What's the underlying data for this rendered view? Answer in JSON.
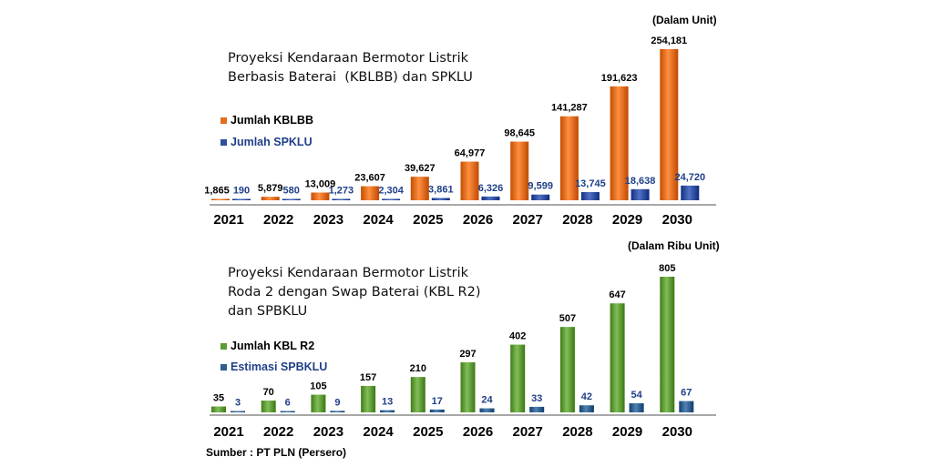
{
  "source": "Sumber : PT PLN (Persero)",
  "chart_data": [
    {
      "type": "bar",
      "title_lines": [
        "Proyeksi Kendaraan Bermotor Listrik",
        "Berbasis Baterai  (KBLBB) dan SPKLU"
      ],
      "unit_note": "(Dalam Unit)",
      "categories": [
        "2021",
        "2022",
        "2023",
        "2024",
        "2025",
        "2026",
        "2027",
        "2028",
        "2029",
        "2030"
      ],
      "series": [
        {
          "name": "Jumlah KBLBB",
          "color": "#e36c1e",
          "label_color": "#000000",
          "values": [
            1865,
            5879,
            13009,
            23607,
            39627,
            64977,
            98645,
            141287,
            191623,
            254181
          ],
          "labels": [
            "1,865",
            "5,879",
            "13,009",
            "23,607",
            "39,627",
            "64,977",
            "98,645",
            "141,287",
            "191,623",
            "254,181"
          ]
        },
        {
          "name": "Jumlah SPKLU",
          "color": "#2f4ea0",
          "label_color": "#1f3f88",
          "values": [
            190,
            580,
            1273,
            2304,
            3861,
            6326,
            9599,
            13745,
            18638,
            24720
          ],
          "labels": [
            "190",
            "580",
            "1,273",
            "2,304",
            "3,861",
            "6,326",
            "9,599",
            "13,745",
            "18,638",
            "24,720"
          ]
        }
      ],
      "ylim": [
        0,
        254181
      ],
      "legend": "left"
    },
    {
      "type": "bar",
      "title_lines": [
        "Proyeksi Kendaraan Bermotor Listrik",
        "Roda 2 dengan Swap Baterai (KBL R2)",
        "dan SPBKLU"
      ],
      "unit_note": "(Dalam Ribu Unit)",
      "categories": [
        "2021",
        "2022",
        "2023",
        "2024",
        "2025",
        "2026",
        "2027",
        "2028",
        "2029",
        "2030"
      ],
      "series": [
        {
          "name": "Jumlah KBL R2",
          "color": "#5e9a35",
          "label_color": "#000000",
          "values": [
            35,
            70,
            105,
            157,
            210,
            297,
            402,
            507,
            647,
            805
          ],
          "labels": [
            "35",
            "70",
            "105",
            "157",
            "210",
            "297",
            "402",
            "507",
            "647",
            "805"
          ]
        },
        {
          "name": "Estimasi SPBKLU",
          "color": "#2e5f8e",
          "label_color": "#1f3f88",
          "values": [
            3,
            6,
            9,
            13,
            17,
            24,
            33,
            42,
            54,
            67
          ],
          "labels": [
            "3",
            "6",
            "9",
            "13",
            "17",
            "24",
            "33",
            "42",
            "54",
            "67"
          ]
        }
      ],
      "ylim": [
        0,
        805
      ],
      "legend": "left"
    }
  ]
}
